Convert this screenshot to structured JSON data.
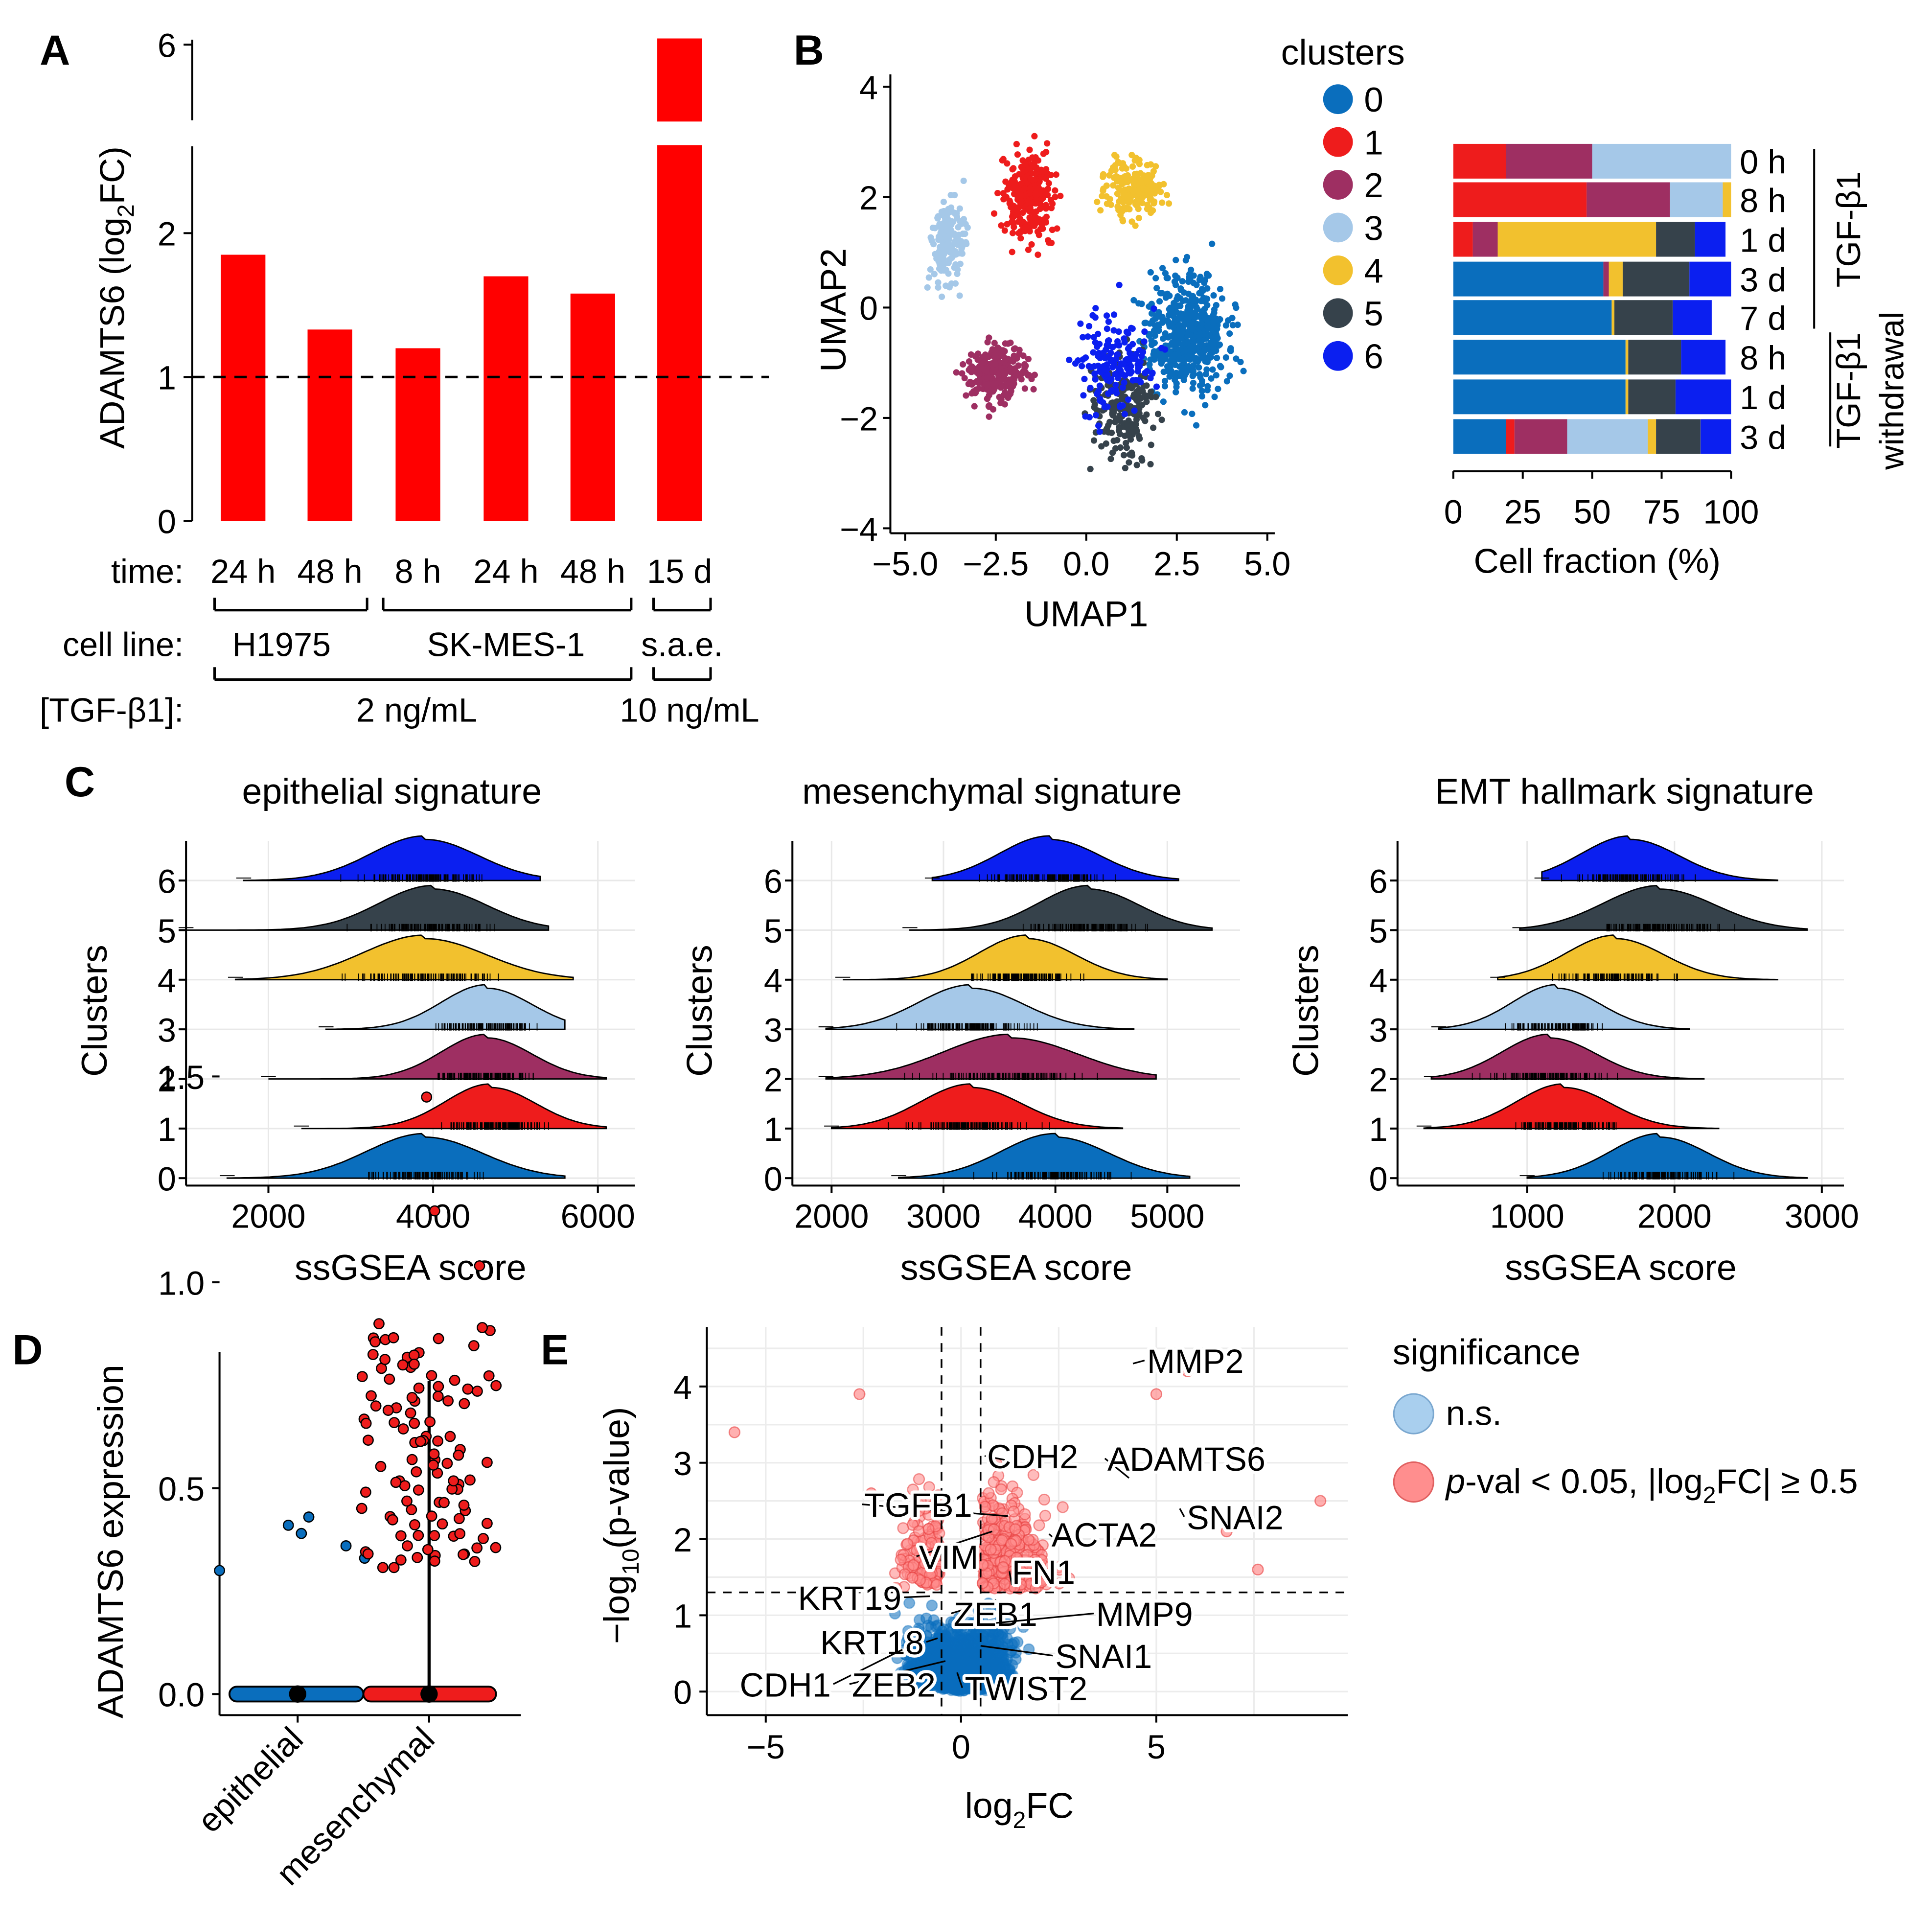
{
  "colors": {
    "c0": "#0a6ebd",
    "c1": "#ee1c1c",
    "c2": "#9e2f62",
    "c3": "#a5c8e8",
    "c4": "#f2c12e",
    "c5": "#36424b",
    "c6": "#0b1ff0",
    "bar": "#ff0000",
    "ns": "#a9cfee",
    "sig": "#ff8e8e"
  },
  "panels": {
    "A": "A",
    "B": "B",
    "C": "C",
    "D": "D",
    "E": "E"
  },
  "chart_data": [
    {
      "panel": "A",
      "type": "bar",
      "ylabel": "ADAMTS6 (log2FC)",
      "ylim": [
        0,
        6.2
      ],
      "yaxis_break": [
        3,
        5.6
      ],
      "yticks": [
        "0",
        "1",
        "2",
        "6"
      ],
      "reference_line": 1,
      "categories": [
        "24 h",
        "48 h",
        "8 h",
        "24 h",
        "48 h",
        "15 d"
      ],
      "values": [
        1.85,
        1.33,
        1.2,
        1.7,
        1.58,
        6.1
      ],
      "row_labels": {
        "time": "time:",
        "cell_line": "cell line:",
        "tgf": "[TGF-β1]:"
      },
      "cell_lines": [
        "H1975",
        "SK-MES-1",
        "s.a.e."
      ],
      "concentrations": [
        "2 ng/mL",
        "10 ng/mL"
      ]
    },
    {
      "panel": "B-umap",
      "type": "scatter",
      "xlabel": "UMAP1",
      "ylabel": "UMAP2",
      "xlim": [
        -5.2,
        5.2
      ],
      "ylim": [
        -4.1,
        4.4
      ],
      "xticks": [
        "−5.0",
        "−2.5",
        "0.0",
        "2.5",
        "5.0"
      ],
      "yticks": [
        "4",
        "2",
        "0",
        "−2",
        "−4"
      ],
      "legend_title": "clusters",
      "legend": [
        "0",
        "1",
        "2",
        "3",
        "4",
        "5",
        "6"
      ],
      "cluster_regions": [
        {
          "cluster": 0,
          "cx": 2.8,
          "cy": -0.5,
          "sx": 1.3,
          "sy": 1.2,
          "n": 520
        },
        {
          "cluster": 1,
          "cx": -1.6,
          "cy": 2.0,
          "sx": 0.8,
          "sy": 0.9,
          "n": 280
        },
        {
          "cluster": 2,
          "cx": -2.5,
          "cy": -1.2,
          "sx": 1.0,
          "sy": 0.6,
          "n": 240
        },
        {
          "cluster": 3,
          "cx": -3.8,
          "cy": 1.2,
          "sx": 0.55,
          "sy": 0.9,
          "n": 160
        },
        {
          "cluster": 4,
          "cx": 1.3,
          "cy": 2.2,
          "sx": 0.9,
          "sy": 0.6,
          "n": 190
        },
        {
          "cluster": 5,
          "cx": 1.0,
          "cy": -1.8,
          "sx": 1.0,
          "sy": 1.1,
          "n": 200
        },
        {
          "cluster": 6,
          "cx": 0.8,
          "cy": -1.0,
          "sx": 1.2,
          "sy": 1.2,
          "n": 160
        }
      ]
    },
    {
      "panel": "B-bars",
      "type": "bar",
      "orientation": "horizontal-stacked",
      "xlabel": "Cell fraction (%)",
      "xticks": [
        "0",
        "25",
        "50",
        "75",
        "100"
      ],
      "group_labels": [
        "TGF-β1",
        "TGF-β1",
        "withdrawal"
      ],
      "categories": [
        "0 h",
        "8 h",
        "1 d",
        "3 d",
        "7 d",
        "8 h",
        "1 d",
        "3 d"
      ],
      "series": [
        {
          "name": "0",
          "values": [
            0,
            0,
            0,
            54,
            57,
            62,
            62,
            19
          ]
        },
        {
          "name": "1",
          "values": [
            19,
            48,
            7,
            0,
            0,
            0,
            0,
            3
          ]
        },
        {
          "name": "2",
          "values": [
            31,
            30,
            9,
            2,
            0,
            0,
            0,
            19
          ]
        },
        {
          "name": "3",
          "values": [
            50,
            19,
            0,
            0,
            0,
            0,
            0,
            29
          ]
        },
        {
          "name": "4",
          "values": [
            0,
            3,
            57,
            5,
            1,
            1,
            1,
            3
          ]
        },
        {
          "name": "5",
          "values": [
            0,
            0,
            14,
            24,
            21,
            19,
            17,
            16
          ]
        },
        {
          "name": "6",
          "values": [
            0,
            0,
            11,
            15,
            14,
            16,
            20,
            11
          ]
        }
      ]
    },
    {
      "panel": "C1",
      "type": "area",
      "title": "epithelial signature",
      "xlabel": "ssGSEA score",
      "ylabel": "Clusters",
      "xlim": [
        1000,
        6450
      ],
      "xticks": [
        2000,
        4000,
        6000
      ],
      "xtick_labels": [
        "2000",
        "4000",
        "6000"
      ],
      "clusters": [
        "0",
        "1",
        "2",
        "3",
        "4",
        "5",
        "6"
      ],
      "modes": [
        3900,
        4700,
        4650,
        4650,
        3900,
        4000,
        3900
      ],
      "spread": [
        700,
        550,
        550,
        550,
        750,
        650,
        650
      ],
      "range": [
        [
          1500,
          5600
        ],
        [
          2400,
          6100
        ],
        [
          2000,
          6100
        ],
        [
          2700,
          5600
        ],
        [
          1600,
          5700
        ],
        [
          1000,
          5400
        ],
        [
          1700,
          5300
        ]
      ]
    },
    {
      "panel": "C2",
      "type": "area",
      "title": "mesenchymal signature",
      "xlabel": "ssGSEA score",
      "ylabel": "Clusters",
      "xlim": [
        1650,
        5650
      ],
      "xticks": [
        2000,
        3000,
        4000,
        5000
      ],
      "xtick_labels": [
        "2000",
        "3000",
        "4000",
        "5000"
      ],
      "clusters": [
        "0",
        "1",
        "2",
        "3",
        "4",
        "5",
        "6"
      ],
      "modes": [
        4000,
        3250,
        3600,
        3250,
        3750,
        4300,
        3950
      ],
      "spread": [
        480,
        450,
        600,
        470,
        430,
        450,
        450
      ],
      "range": [
        [
          2600,
          5200
        ],
        [
          2000,
          4600
        ],
        [
          1950,
          4900
        ],
        [
          1950,
          4700
        ],
        [
          2100,
          5000
        ],
        [
          2700,
          5400
        ],
        [
          2900,
          5100
        ]
      ]
    },
    {
      "panel": "C3",
      "type": "area",
      "title": "EMT hallmark signature",
      "xlabel": "ssGSEA score",
      "ylabel": "Clusters",
      "xlim": [
        120,
        3150
      ],
      "xticks": [
        1000,
        2000,
        3000
      ],
      "xtick_labels": [
        "1000",
        "2000",
        "3000"
      ],
      "clusters": [
        "0",
        "1",
        "2",
        "3",
        "4",
        "5",
        "6"
      ],
      "modes": [
        1900,
        1250,
        1150,
        1200,
        1600,
        1900,
        1700
      ],
      "spread": [
        330,
        320,
        320,
        300,
        330,
        380,
        330
      ],
      "range": [
        [
          1000,
          2900
        ],
        [
          300,
          2300
        ],
        [
          350,
          2200
        ],
        [
          400,
          2100
        ],
        [
          800,
          2700
        ],
        [
          950,
          2900
        ],
        [
          1100,
          2700
        ]
      ]
    },
    {
      "panel": "D",
      "type": "scatter",
      "ylabel": "ADAMTS6 expression",
      "ylim": [
        -0.1,
        1.6
      ],
      "yticks": [
        "0.0",
        "0.5",
        "1.0",
        "1.5"
      ],
      "categories": [
        "epithelial",
        "mesenchymal"
      ],
      "epithelial_points": [
        [
          -0.42,
          0.3
        ],
        [
          -0.05,
          0.41
        ],
        [
          0.02,
          0.39
        ],
        [
          0.06,
          0.43
        ],
        [
          0.26,
          0.36
        ],
        [
          0.36,
          0.33
        ]
      ],
      "mesenchymal_nonzero_count": 110,
      "mesenchymal_max": 1.45,
      "medians": [
        0,
        0
      ]
    },
    {
      "panel": "E",
      "type": "scatter",
      "xlabel": "log2FC",
      "ylabel": "−log10(p-value)",
      "xlim": [
        -6.2,
        9.8
      ],
      "ylim": [
        -0.1,
        4.6
      ],
      "xticks": [
        -5,
        0,
        5
      ],
      "xtick_labels": [
        "−5",
        "0",
        "5"
      ],
      "yticks": [
        0,
        1,
        2,
        3,
        4
      ],
      "ytick_labels": [
        "0",
        "1",
        "2",
        "3",
        "4"
      ],
      "thresholds": {
        "log2fc": 0.5,
        "neglog10p": 1.3
      },
      "legend_title": "significance",
      "legend": [
        "n.s.",
        "p-val < 0.05, |log2FC| ≥ 0.5"
      ],
      "labels": [
        {
          "gene": "MMP2",
          "x": 4.4,
          "y": 4.3
        },
        {
          "gene": "CDH2",
          "x": 1.5,
          "y": 3.0
        },
        {
          "gene": "ADAMTS6",
          "x": 4.3,
          "y": 2.8
        },
        {
          "gene": "SNAI2",
          "x": 5.6,
          "y": 2.4
        },
        {
          "gene": "TGFB1",
          "x": 1.2,
          "y": 2.3
        },
        {
          "gene": "ACTA2",
          "x": 2.4,
          "y": 2.0
        },
        {
          "gene": "VIM",
          "x": 0.8,
          "y": 2.1
        },
        {
          "gene": "FN1",
          "x": 1.3,
          "y": 1.4
        },
        {
          "gene": "KRT19",
          "x": -0.8,
          "y": 1.25
        },
        {
          "gene": "ZEB1",
          "x": 0.9,
          "y": 1.2
        },
        {
          "gene": "MMP9",
          "x": 0.9,
          "y": 0.9
        },
        {
          "gene": "KRT18",
          "x": -0.6,
          "y": 0.7
        },
        {
          "gene": "SNAI1",
          "x": 0.5,
          "y": 0.6
        },
        {
          "gene": "CDH1",
          "x": -1.5,
          "y": 0.55
        },
        {
          "gene": "ZEB2",
          "x": -0.4,
          "y": 0.4
        },
        {
          "gene": "TWIST2",
          "x": -0.1,
          "y": 0.25
        }
      ]
    }
  ]
}
